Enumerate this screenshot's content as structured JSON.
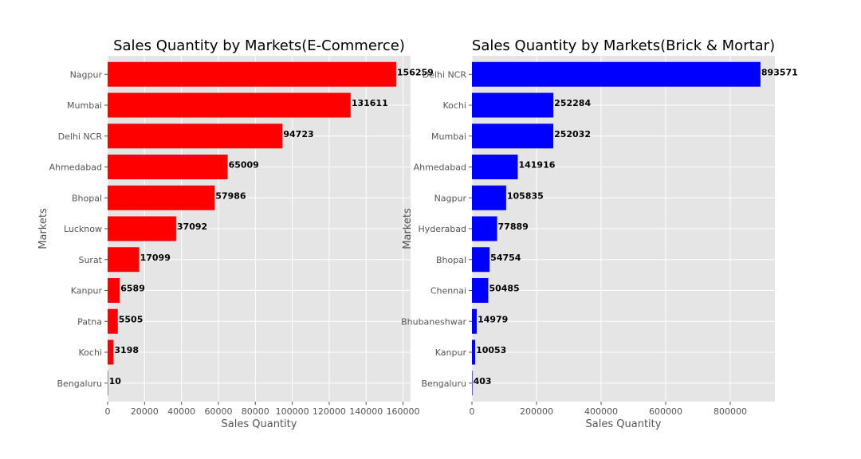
{
  "chart_data": [
    {
      "type": "bar",
      "orientation": "horizontal",
      "title": "Sales Quantity by Markets(E-Commerce)",
      "xlabel": "Sales Quantity",
      "ylabel": "Markets",
      "categories": [
        "Nagpur",
        "Mumbai",
        "Delhi NCR",
        "Ahmedabad",
        "Bhopal",
        "Lucknow",
        "Surat",
        "Kanpur",
        "Patna",
        "Kochi",
        "Bengaluru"
      ],
      "values": [
        156259,
        131611,
        94723,
        65009,
        57986,
        37092,
        17099,
        6589,
        5505,
        3198,
        10
      ],
      "xlim": [
        0,
        164072
      ],
      "xticks": [
        0,
        20000,
        40000,
        60000,
        80000,
        100000,
        120000,
        140000,
        160000
      ],
      "grid": true,
      "bar_color": "#ff0000"
    },
    {
      "type": "bar",
      "orientation": "horizontal",
      "title": "Sales Quantity by Markets(Brick & Mortar)",
      "xlabel": "Sales Quantity",
      "ylabel": "Markets",
      "categories": [
        "Delhi NCR",
        "Kochi",
        "Mumbai",
        "Ahmedabad",
        "Nagpur",
        "Hyderabad",
        "Bhopal",
        "Chennai",
        "Bhubaneshwar",
        "Kanpur",
        "Bengaluru"
      ],
      "values": [
        893571,
        252284,
        252032,
        141916,
        105835,
        77889,
        54754,
        50485,
        14979,
        10053,
        403
      ],
      "xlim": [
        0,
        938250
      ],
      "xticks": [
        0,
        200000,
        400000,
        600000,
        800000
      ],
      "grid": true,
      "bar_color": "#0000ff"
    }
  ],
  "style": {
    "axes_background": "#e5e5e5",
    "grid_color": "#ffffff",
    "tick_color": "#555555",
    "label_color": "#555555",
    "title_color": "#000000",
    "data_label_color": "#000000"
  }
}
